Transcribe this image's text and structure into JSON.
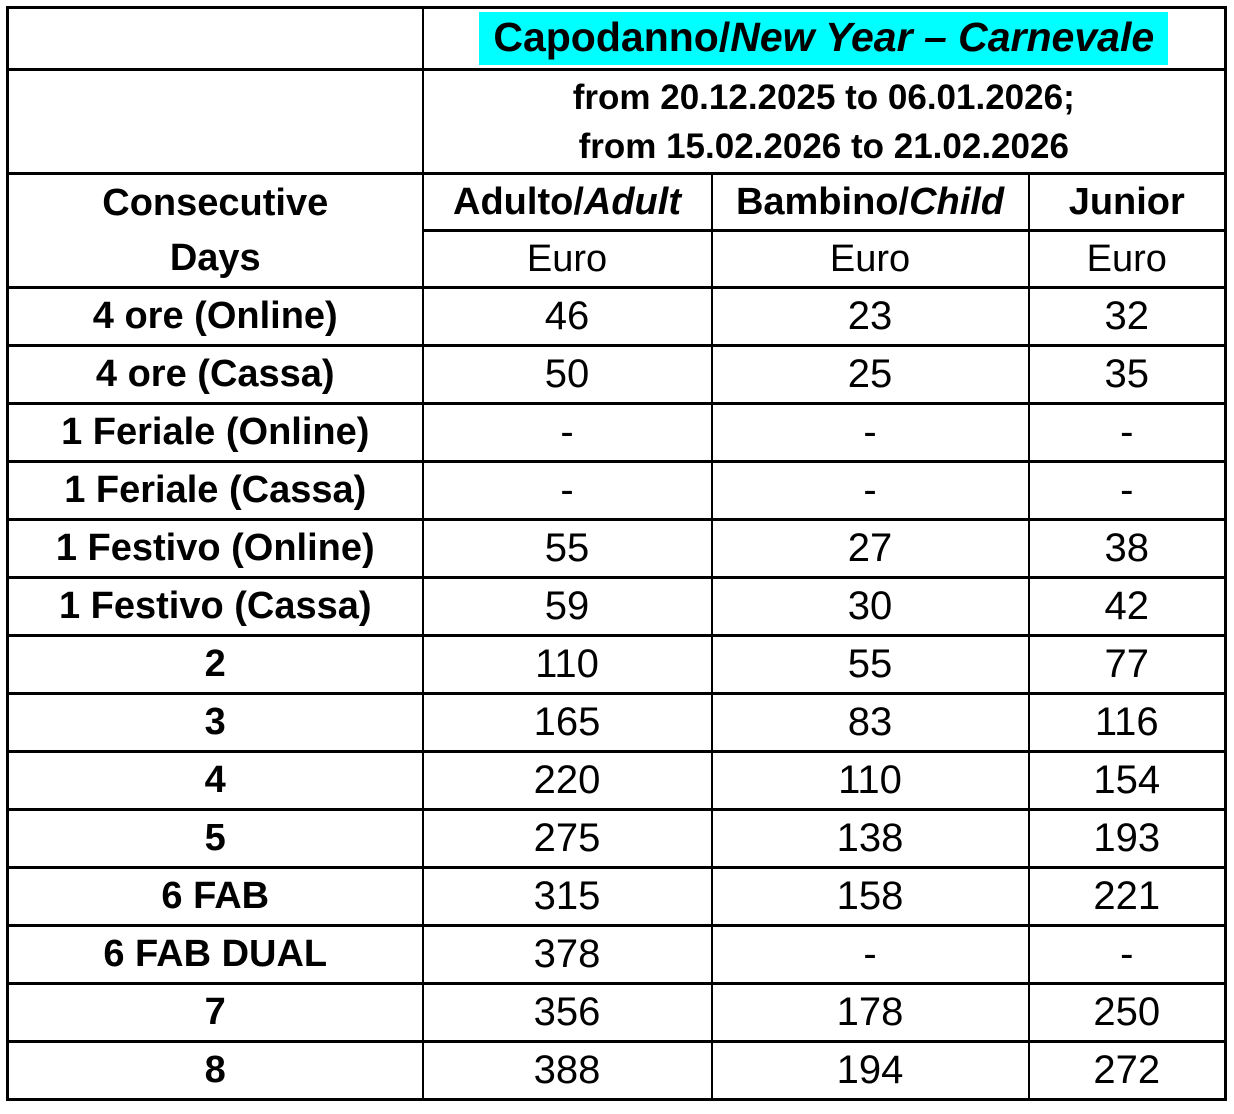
{
  "title": {
    "part_regular": "Capodanno/",
    "part_italic": "New Year – Carnevale"
  },
  "period": {
    "line1": "from 20.12.2025 to 06.01.2026;",
    "line2": "from 15.02.2026 to 21.02.2026"
  },
  "columns": {
    "days_line1": "Consecutive",
    "days_line2": "Days",
    "adult": {
      "regular": "Adulto/",
      "italic": "Adult"
    },
    "child": {
      "regular": "Bambino/",
      "italic": "Child"
    },
    "junior": "Junior",
    "unit": "Euro"
  },
  "colors": {
    "highlight": "#00FFFF",
    "border": "#000000",
    "text": "#000000",
    "background": "#FFFFFF"
  },
  "rows": [
    {
      "label": "4 ore (Online)",
      "adult": "46",
      "child": "23",
      "junior": "32"
    },
    {
      "label": "4 ore (Cassa)",
      "adult": "50",
      "child": "25",
      "junior": "35"
    },
    {
      "label": "1 Feriale (Online)",
      "adult": "-",
      "child": "-",
      "junior": "-"
    },
    {
      "label": "1 Feriale (Cassa)",
      "adult": "-",
      "child": "-",
      "junior": "-"
    },
    {
      "label": "1 Festivo (Online)",
      "adult": "55",
      "child": "27",
      "junior": "38"
    },
    {
      "label": "1 Festivo (Cassa)",
      "adult": "59",
      "child": "30",
      "junior": "42"
    },
    {
      "label": "2",
      "adult": "110",
      "child": "55",
      "junior": "77"
    },
    {
      "label": "3",
      "adult": "165",
      "child": "83",
      "junior": "116"
    },
    {
      "label": "4",
      "adult": "220",
      "child": "110",
      "junior": "154"
    },
    {
      "label": "5",
      "adult": "275",
      "child": "138",
      "junior": "193"
    },
    {
      "label": "6 FAB",
      "adult": "315",
      "child": "158",
      "junior": "221"
    },
    {
      "label": "6 FAB DUAL",
      "adult": "378",
      "child": "-",
      "junior": "-"
    },
    {
      "label": "7",
      "adult": "356",
      "child": "178",
      "junior": "250"
    },
    {
      "label": "8",
      "adult": "388",
      "child": "194",
      "junior": "272"
    }
  ]
}
